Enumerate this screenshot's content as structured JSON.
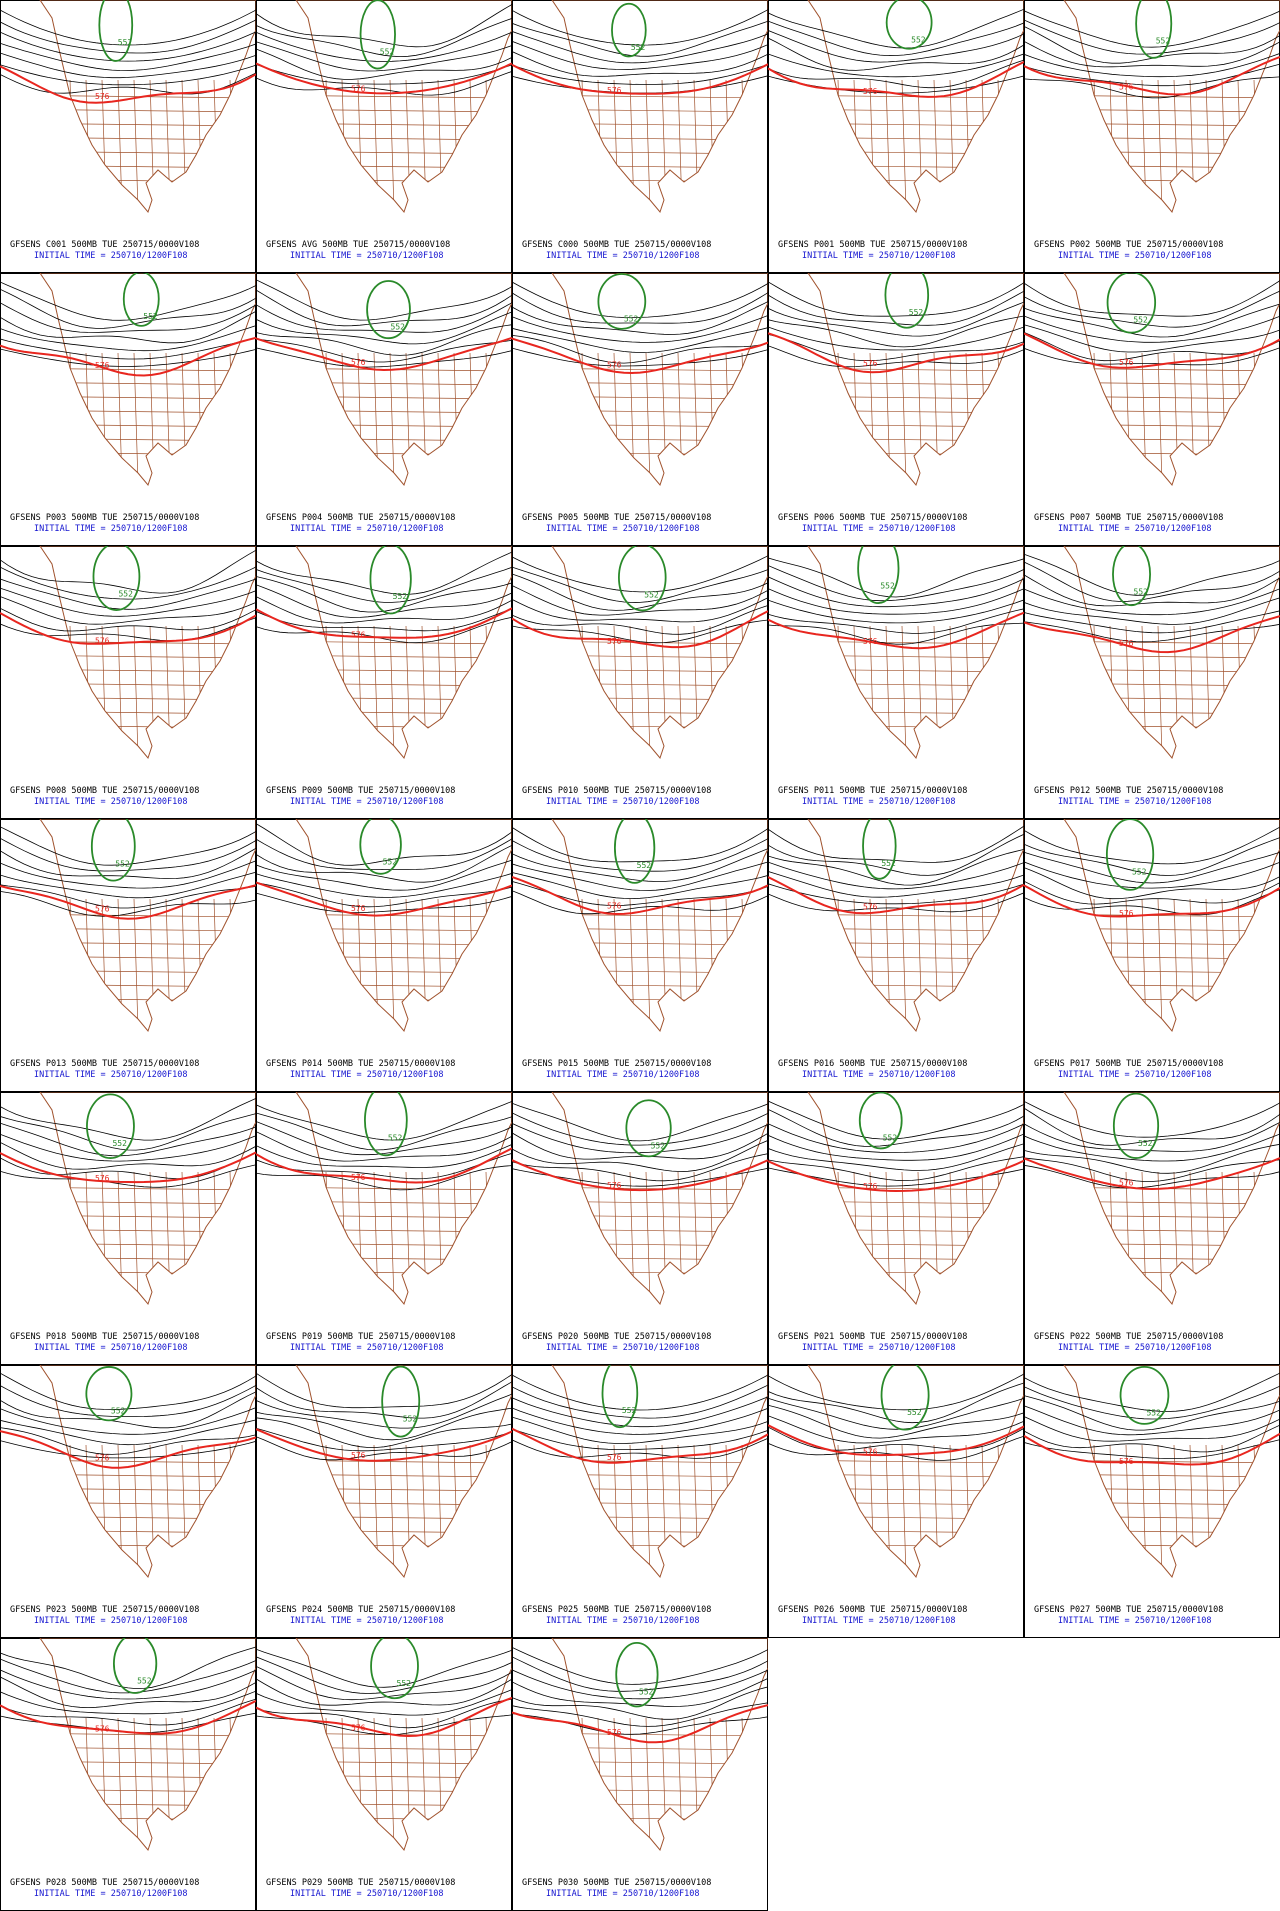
{
  "panels": [
    {
      "title": "GFSENS C001 500MB TUE 250715/0000V108",
      "subtitle": "INITIAL TIME = 250710/1200F108",
      "contour_labels": [
        "576",
        "552"
      ]
    },
    {
      "title": "GFSENS AVG 500MB TUE 250715/0000V108",
      "subtitle": "INITIAL TIME = 250710/1200F108",
      "contour_labels": [
        "576",
        "552"
      ]
    },
    {
      "title": "GFSENS C000 500MB TUE 250715/0000V108",
      "subtitle": "INITIAL TIME = 250710/1200F108",
      "contour_labels": [
        "576",
        "552"
      ]
    },
    {
      "title": "GFSENS P001 500MB TUE 250715/0000V108",
      "subtitle": "INITIAL TIME = 250710/1200F108",
      "contour_labels": [
        "576",
        "552"
      ]
    },
    {
      "title": "GFSENS P002 500MB TUE 250715/0000V108",
      "subtitle": "INITIAL TIME = 250710/1200F108",
      "contour_labels": [
        "576",
        "552"
      ]
    },
    {
      "title": "GFSENS P003 500MB TUE 250715/0000V108",
      "subtitle": "INITIAL TIME = 250710/1200F108",
      "contour_labels": [
        "576",
        "552"
      ]
    },
    {
      "title": "GFSENS P004 500MB TUE 250715/0000V108",
      "subtitle": "INITIAL TIME = 250710/1200F108",
      "contour_labels": [
        "576",
        "552"
      ]
    },
    {
      "title": "GFSENS P005 500MB TUE 250715/0000V108",
      "subtitle": "INITIAL TIME = 250710/1200F108",
      "contour_labels": [
        "576",
        "552"
      ]
    },
    {
      "title": "GFSENS P006 500MB TUE 250715/0000V108",
      "subtitle": "INITIAL TIME = 250710/1200F108",
      "contour_labels": [
        "576",
        "552"
      ]
    },
    {
      "title": "GFSENS P007 500MB TUE 250715/0000V108",
      "subtitle": "INITIAL TIME = 250710/1200F108",
      "contour_labels": [
        "576",
        "552"
      ]
    },
    {
      "title": "GFSENS P008 500MB TUE 250715/0000V108",
      "subtitle": "INITIAL TIME = 250710/1200F108",
      "contour_labels": [
        "576",
        "552"
      ]
    },
    {
      "title": "GFSENS P009 500MB TUE 250715/0000V108",
      "subtitle": "INITIAL TIME = 250710/1200F108",
      "contour_labels": [
        "576",
        "552"
      ]
    },
    {
      "title": "GFSENS P010 500MB TUE 250715/0000V108",
      "subtitle": "INITIAL TIME = 250710/1200F108",
      "contour_labels": [
        "576",
        "552"
      ]
    },
    {
      "title": "GFSENS P011 500MB TUE 250715/0000V108",
      "subtitle": "INITIAL TIME = 250710/1200F108",
      "contour_labels": [
        "576",
        "552"
      ]
    },
    {
      "title": "GFSENS P012 500MB TUE 250715/0000V108",
      "subtitle": "INITIAL TIME = 250710/1200F108",
      "contour_labels": [
        "576",
        "552"
      ]
    },
    {
      "title": "GFSENS P013 500MB TUE 250715/0000V108",
      "subtitle": "INITIAL TIME = 250710/1200F108",
      "contour_labels": [
        "576",
        "552"
      ]
    },
    {
      "title": "GFSENS P014 500MB TUE 250715/0000V108",
      "subtitle": "INITIAL TIME = 250710/1200F108",
      "contour_labels": [
        "576",
        "552"
      ]
    },
    {
      "title": "GFSENS P015 500MB TUE 250715/0000V108",
      "subtitle": "INITIAL TIME = 250710/1200F108",
      "contour_labels": [
        "576",
        "552"
      ]
    },
    {
      "title": "GFSENS P016 500MB TUE 250715/0000V108",
      "subtitle": "INITIAL TIME = 250710/1200F108",
      "contour_labels": [
        "576",
        "552"
      ]
    },
    {
      "title": "GFSENS P017 500MB TUE 250715/0000V108",
      "subtitle": "INITIAL TIME = 250710/1200F108",
      "contour_labels": [
        "576",
        "552"
      ]
    },
    {
      "title": "GFSENS P018 500MB TUE 250715/0000V108",
      "subtitle": "INITIAL TIME = 250710/1200F108",
      "contour_labels": [
        "576",
        "552"
      ]
    },
    {
      "title": "GFSENS P019 500MB TUE 250715/0000V108",
      "subtitle": "INITIAL TIME = 250710/1200F108",
      "contour_labels": [
        "576",
        "552"
      ]
    },
    {
      "title": "GFSENS P020 500MB TUE 250715/0000V108",
      "subtitle": "INITIAL TIME = 250710/1200F108",
      "contour_labels": [
        "576",
        "552"
      ]
    },
    {
      "title": "GFSENS P021 500MB TUE 250715/0000V108",
      "subtitle": "INITIAL TIME = 250710/1200F108",
      "contour_labels": [
        "576",
        "552"
      ]
    },
    {
      "title": "GFSENS P022 500MB TUE 250715/0000V108",
      "subtitle": "INITIAL TIME = 250710/1200F108",
      "contour_labels": [
        "576",
        "552"
      ]
    },
    {
      "title": "GFSENS P023 500MB TUE 250715/0000V108",
      "subtitle": "INITIAL TIME = 250710/1200F108",
      "contour_labels": [
        "576",
        "552"
      ]
    },
    {
      "title": "GFSENS P024 500MB TUE 250715/0000V108",
      "subtitle": "INITIAL TIME = 250710/1200F108",
      "contour_labels": [
        "576",
        "552"
      ]
    },
    {
      "title": "GFSENS P025 500MB TUE 250715/0000V108",
      "subtitle": "INITIAL TIME = 250710/1200F108",
      "contour_labels": [
        "576",
        "552"
      ]
    },
    {
      "title": "GFSENS P026 500MB TUE 250715/0000V108",
      "subtitle": "INITIAL TIME = 250710/1200F108",
      "contour_labels": [
        "576",
        "552"
      ]
    },
    {
      "title": "GFSENS P027 500MB TUE 250715/0000V108",
      "subtitle": "INITIAL TIME = 250710/1200F108",
      "contour_labels": [
        "576",
        "552"
      ]
    },
    {
      "title": "GFSENS P028 500MB TUE 250715/0000V108",
      "subtitle": "INITIAL TIME = 250710/1200F108",
      "contour_labels": [
        "576",
        "552"
      ]
    },
    {
      "title": "GFSENS P029 500MB TUE 250715/0000V108",
      "subtitle": "INITIAL TIME = 250710/1200F108",
      "contour_labels": [
        "576",
        "552"
      ]
    },
    {
      "title": "GFSENS P030 500MB TUE 250715/0000V108",
      "subtitle": "INITIAL TIME = 250710/1200F108",
      "contour_labels": [
        "576",
        "552"
      ]
    }
  ]
}
